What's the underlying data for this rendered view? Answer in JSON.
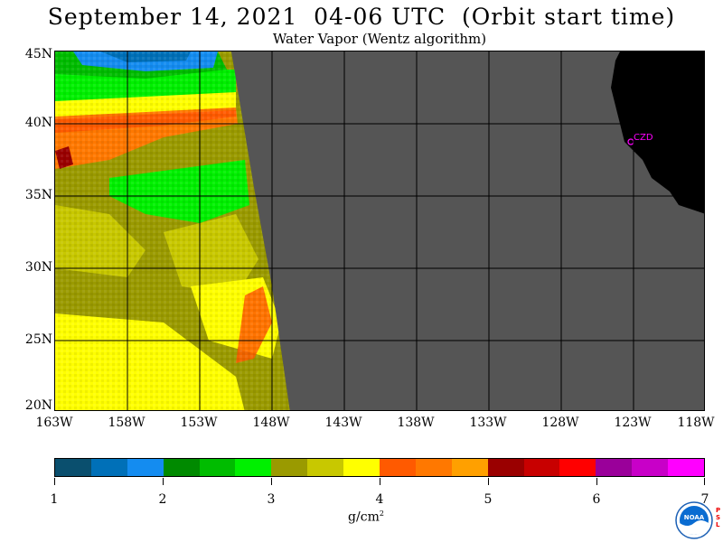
{
  "title": "September 14, 2021  04-06 UTC  (Orbit start time)",
  "subtitle": "Water Vapor (Wentz algorithm)",
  "lat_labels": [
    "45N",
    "40N",
    "35N",
    "30N",
    "25N",
    "20N"
  ],
  "lon_labels": [
    "163W",
    "158W",
    "153W",
    "148W",
    "143W",
    "138W",
    "133W",
    "128W",
    "123W",
    "118W"
  ],
  "station_label": "CZD",
  "colorbar": {
    "ticks": [
      "1",
      "2",
      "3",
      "4",
      "5",
      "6",
      "7"
    ],
    "unit": "g/cm",
    "unit_exp": "2",
    "colors": [
      "#0a4f6e",
      "#0070b8",
      "#148cf0",
      "#008a00",
      "#00bc00",
      "#00f000",
      "#9a9a00",
      "#c8c800",
      "#ffff00",
      "#ff5a00",
      "#ff7800",
      "#ffa000",
      "#9a0000",
      "#c80000",
      "#ff0000",
      "#9a009a",
      "#c800c8",
      "#ff00ff"
    ]
  },
  "logo_text": "NOAA",
  "psl_text": "PSL",
  "map_colors": {
    "no_data": "#555555",
    "land": "#000000",
    "station": "#ff00ff",
    "grid": "#000000"
  }
}
